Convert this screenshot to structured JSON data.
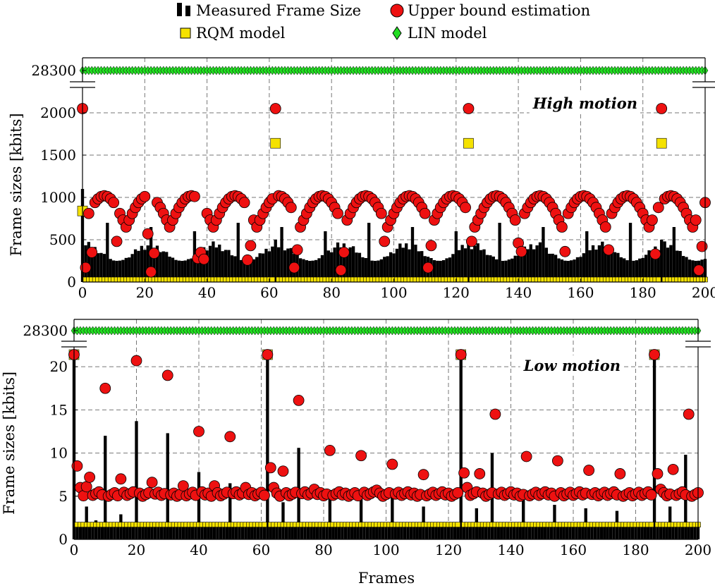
{
  "legend": {
    "position": "top-center",
    "items": [
      {
        "label": "Measured Frame Size",
        "marker": "bar",
        "color": "#000000"
      },
      {
        "label": "Upper bound estimation",
        "marker": "circle",
        "color": "#ee1111"
      },
      {
        "label": "RQM model",
        "marker": "square",
        "color": "#f5e200"
      },
      {
        "label": "LIN model",
        "marker": "diamond",
        "color": "#22dd22"
      }
    ]
  },
  "chart_data": [
    {
      "type": "bar",
      "panel": "top",
      "annotation": "High motion",
      "ylabel": "Frame sizes [kbits]",
      "xlabel": "",
      "xlim": [
        0,
        200
      ],
      "ylim": [
        0,
        2300
      ],
      "axis_break_value": 28300,
      "yticks": [
        0,
        500,
        1000,
        1500,
        2000
      ],
      "ytick_labels": [
        "0",
        "500",
        "1000",
        "1500",
        "2000"
      ],
      "break_tick_label": "28300",
      "xticks": [
        0,
        20,
        40,
        60,
        80,
        100,
        120,
        140,
        160,
        180,
        200
      ],
      "xtick_labels": [
        "0",
        "20",
        "40",
        "60",
        "80",
        "100",
        "120",
        "140",
        "160",
        "180",
        "200"
      ],
      "grid": true,
      "gop": 62,
      "colors": {
        "bar": "#000000",
        "upper": "#ee1111",
        "rqm": "#f5e200",
        "lin": "#22dd22"
      },
      "measured_frame_size": {
        "i_frame": 1100,
        "p_peak_values": [
          600,
          650,
          700
        ],
        "base_range": [
          250,
          480
        ]
      },
      "upper_bound_estimation": {
        "i_frame_value": 2050,
        "wave_range": [
          650,
          1020
        ],
        "low_points": [
          [
            1,
            170
          ],
          [
            3,
            350
          ],
          [
            11,
            480
          ],
          [
            21,
            570
          ],
          [
            22,
            120
          ],
          [
            23,
            340
          ],
          [
            37,
            280
          ],
          [
            38,
            350
          ],
          [
            39,
            270
          ],
          [
            53,
            260
          ],
          [
            54,
            430
          ],
          [
            68,
            170
          ],
          [
            69,
            380
          ],
          [
            83,
            140
          ],
          [
            84,
            350
          ],
          [
            97,
            480
          ],
          [
            111,
            170
          ],
          [
            112,
            430
          ],
          [
            125,
            480
          ],
          [
            140,
            460
          ],
          [
            141,
            360
          ],
          [
            155,
            360
          ],
          [
            169,
            380
          ],
          [
            184,
            330
          ],
          [
            198,
            140
          ],
          [
            199,
            420
          ]
        ]
      },
      "rqm_model": {
        "i_frame_value": 1640,
        "first_value": 840,
        "other_frames": 0
      },
      "lin_model": {
        "value": 28300
      }
    },
    {
      "type": "bar",
      "panel": "bottom",
      "annotation": "Low motion",
      "ylabel": "Frame sizes [kbits]",
      "xlabel": "Frames",
      "xlim": [
        0,
        200
      ],
      "ylim": [
        0,
        22.3
      ],
      "axis_break_value": 28300,
      "yticks": [
        0,
        5,
        10,
        15,
        20
      ],
      "ytick_labels": [
        "0",
        "5",
        "10",
        "15",
        "20"
      ],
      "break_tick_label": "28300",
      "xticks": [
        0,
        20,
        40,
        60,
        80,
        100,
        120,
        140,
        160,
        180,
        200
      ],
      "xtick_labels": [
        "0",
        "20",
        "40",
        "60",
        "80",
        "100",
        "120",
        "140",
        "160",
        "180",
        "200"
      ],
      "grid": true,
      "gop": 62,
      "colors": {
        "bar": "#000000",
        "upper": "#ee1111",
        "rqm": "#f5e200",
        "lin": "#22dd22"
      },
      "measured_frame_size": {
        "i_frame": 21.4,
        "peaks": [
          [
            10,
            12.0
          ],
          [
            20,
            13.7
          ],
          [
            30,
            12.3
          ],
          [
            40,
            7.8
          ],
          [
            50,
            6.5
          ],
          [
            62,
            21.4
          ],
          [
            67,
            4.3
          ],
          [
            72,
            10.6
          ],
          [
            82,
            5.2
          ],
          [
            92,
            4.9
          ],
          [
            102,
            4.9
          ],
          [
            112,
            3.8
          ],
          [
            124,
            21.4
          ],
          [
            129,
            3.6
          ],
          [
            134,
            10.0
          ],
          [
            144,
            5.0
          ],
          [
            154,
            4.0
          ],
          [
            164,
            3.6
          ],
          [
            174,
            3.3
          ],
          [
            186,
            21.4
          ],
          [
            191,
            3.8
          ],
          [
            196,
            9.8
          ],
          [
            4,
            3.8
          ],
          [
            15,
            2.9
          ],
          [
            7,
            2.2
          ]
        ],
        "base_value": 2.0
      },
      "upper_bound_estimation": {
        "i_frame_value": 21.4,
        "points": [
          [
            1,
            8.5
          ],
          [
            2,
            6.0
          ],
          [
            4,
            6.1
          ],
          [
            5,
            7.2
          ],
          [
            10,
            17.5
          ],
          [
            15,
            7.0
          ],
          [
            20,
            20.7
          ],
          [
            25,
            6.6
          ],
          [
            30,
            19.0
          ],
          [
            35,
            6.2
          ],
          [
            40,
            12.5
          ],
          [
            45,
            6.2
          ],
          [
            50,
            11.9
          ],
          [
            55,
            6.0
          ],
          [
            63,
            8.3
          ],
          [
            64,
            6.0
          ],
          [
            67,
            7.9
          ],
          [
            72,
            16.1
          ],
          [
            77,
            5.8
          ],
          [
            82,
            10.3
          ],
          [
            92,
            9.7
          ],
          [
            97,
            5.7
          ],
          [
            102,
            8.7
          ],
          [
            112,
            7.5
          ],
          [
            125,
            7.7
          ],
          [
            126,
            6.0
          ],
          [
            130,
            7.6
          ],
          [
            135,
            14.5
          ],
          [
            145,
            9.6
          ],
          [
            155,
            9.1
          ],
          [
            165,
            8.0
          ],
          [
            175,
            7.6
          ],
          [
            187,
            7.6
          ],
          [
            188,
            5.8
          ],
          [
            192,
            8.1
          ],
          [
            197,
            14.5
          ]
        ],
        "base_range": [
          5.0,
          5.5
        ]
      },
      "rqm_model": {
        "i_frame_value": 21.4,
        "other_frames": 1.7
      },
      "lin_model": {
        "value": 28300
      }
    }
  ]
}
